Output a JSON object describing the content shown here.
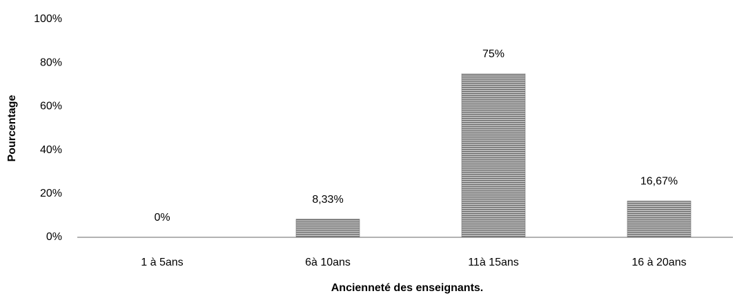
{
  "chart_data": {
    "type": "bar",
    "categories": [
      "1 à 5ans",
      "6à 10ans",
      "11à 15ans",
      "16 à 20ans"
    ],
    "values": [
      0,
      8.33,
      75,
      16.67
    ],
    "value_labels": [
      "0%",
      "8,33%",
      "75%",
      "16,67%"
    ],
    "color": "#8c8c8c",
    "xlabel": "Ancienneté des enseignants.",
    "ylabel": "Pourcentage",
    "ylim": [
      0,
      100
    ],
    "yticks": [
      {
        "value": 0,
        "label": "0%"
      },
      {
        "value": 20,
        "label": "20%"
      },
      {
        "value": 40,
        "label": "40%"
      },
      {
        "value": 60,
        "label": "60%"
      },
      {
        "value": 80,
        "label": "80%"
      },
      {
        "value": 100,
        "label": "100%"
      }
    ],
    "grid": false
  }
}
